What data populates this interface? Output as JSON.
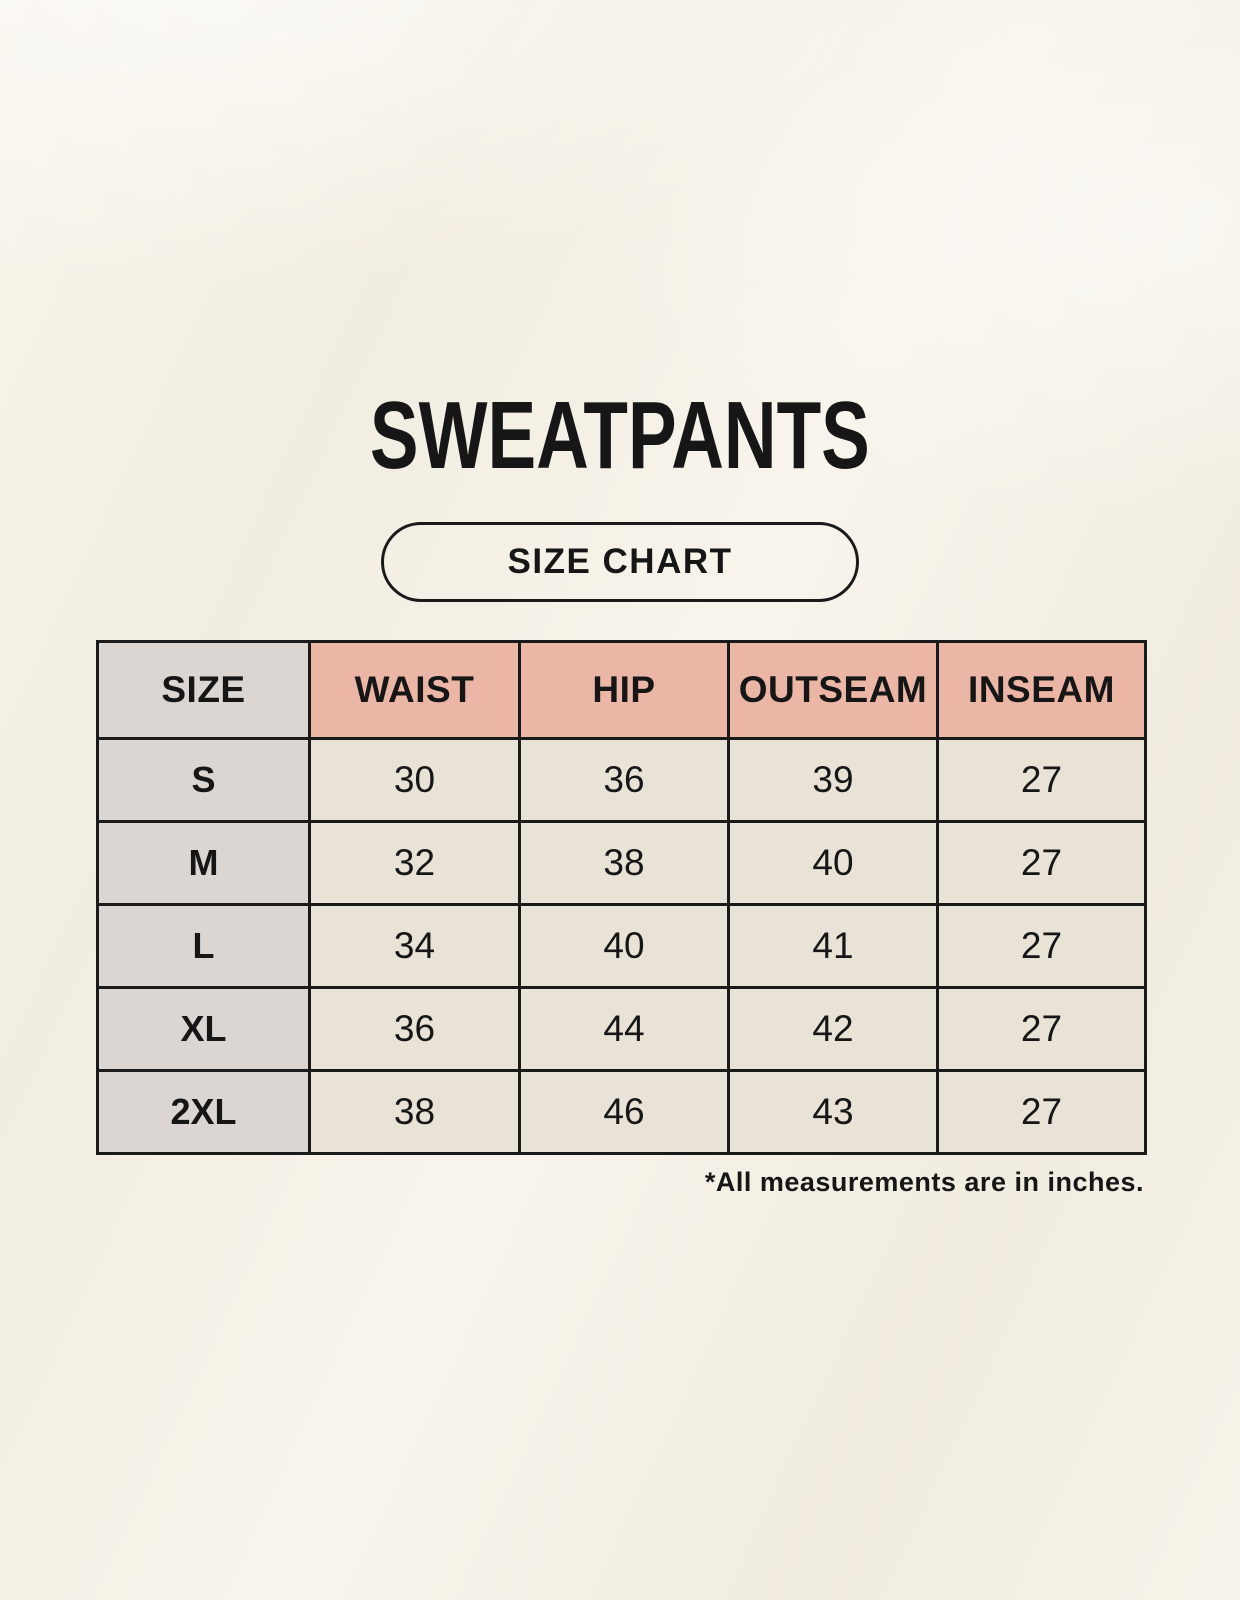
{
  "page": {
    "title": "SWEATPANTS",
    "badge_label": "SIZE CHART",
    "footnote": "*All measurements are in inches."
  },
  "table": {
    "columns": [
      "SIZE",
      "WAIST",
      "HIP",
      "OUTSEAM",
      "INSEAM"
    ],
    "rows": [
      {
        "label": "S",
        "cells": [
          "30",
          "36",
          "39",
          "27"
        ]
      },
      {
        "label": "M",
        "cells": [
          "32",
          "38",
          "40",
          "27"
        ]
      },
      {
        "label": "L",
        "cells": [
          "34",
          "40",
          "41",
          "27"
        ]
      },
      {
        "label": "XL",
        "cells": [
          "36",
          "44",
          "42",
          "27"
        ]
      },
      {
        "label": "2XL",
        "cells": [
          "38",
          "46",
          "43",
          "27"
        ]
      }
    ]
  },
  "colors": {
    "background": "#f5f1e8",
    "header_accent": "#ecb6a6",
    "header_neutral": "#dcd6d2",
    "cell_fill": "#e9e3d7",
    "table_border": "#1a1a1a",
    "text": "#161616"
  }
}
